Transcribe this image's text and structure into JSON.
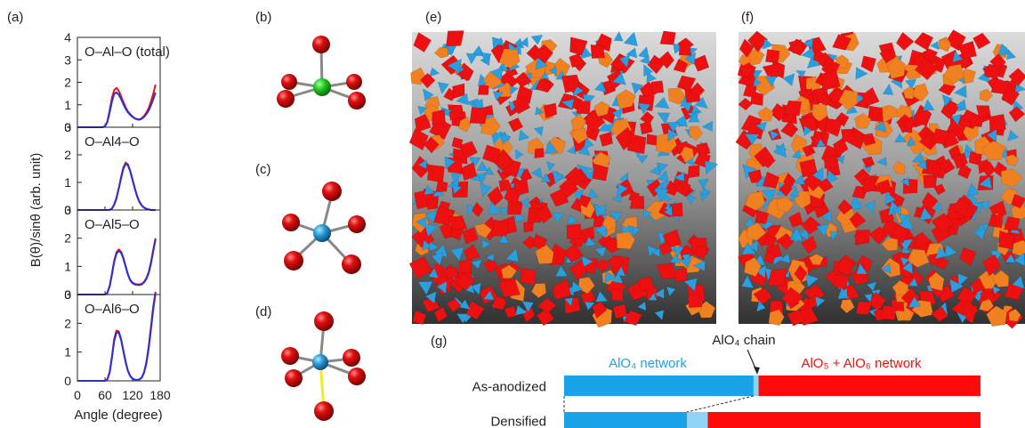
{
  "panel_labels": {
    "a": "(a)",
    "b": "(b)",
    "c": "(c)",
    "d": "(d)",
    "e": "(e)",
    "f": "(f)",
    "g": "(g)"
  },
  "chart_data": {
    "type": "line",
    "xlabel": "Angle (degree)",
    "ylabel": "B(θ)/sinθ (arb. unit)",
    "xlim": [
      0,
      180
    ],
    "x_ticks": [
      0,
      60,
      120,
      180
    ],
    "series_colors": [
      "#ee1111",
      "#2233dd"
    ],
    "panels": [
      {
        "title": "O–Al–O (total)",
        "ylim": [
          0,
          4
        ],
        "y_ticks": [
          0,
          1,
          2,
          3,
          4
        ],
        "series": [
          {
            "x": [
              0,
              55,
              60,
              65,
              70,
              75,
              80,
              85,
              90,
              95,
              100,
              105,
              110,
              115,
              120,
              125,
              130,
              135,
              140,
              145,
              150,
              155,
              160,
              165,
              170
            ],
            "values": [
              0,
              0,
              0.05,
              0.25,
              0.75,
              1.3,
              1.65,
              1.75,
              1.62,
              1.38,
              1.12,
              0.88,
              0.7,
              0.58,
              0.48,
              0.4,
              0.36,
              0.35,
              0.4,
              0.5,
              0.65,
              0.85,
              1.15,
              1.5,
              1.9
            ]
          },
          {
            "x": [
              0,
              55,
              60,
              65,
              70,
              75,
              80,
              85,
              90,
              95,
              100,
              105,
              110,
              115,
              120,
              125,
              130,
              135,
              140,
              145,
              150,
              155,
              160,
              165,
              170
            ],
            "values": [
              0,
              0,
              0.04,
              0.22,
              0.65,
              1.15,
              1.48,
              1.55,
              1.45,
              1.25,
              1.02,
              0.82,
              0.66,
              0.55,
              0.46,
              0.39,
              0.35,
              0.34,
              0.38,
              0.46,
              0.58,
              0.75,
              0.98,
              1.25,
              1.55
            ]
          }
        ]
      },
      {
        "title": "O–Al4–O",
        "ylim": [
          0,
          3
        ],
        "y_ticks": [
          0,
          1,
          2,
          3
        ],
        "series": [
          {
            "x": [
              0,
              70,
              75,
              80,
              85,
              90,
              95,
              100,
              105,
              110,
              115,
              120,
              125,
              130,
              135,
              140,
              145,
              150,
              155,
              160,
              170
            ],
            "values": [
              0,
              0,
              0.05,
              0.2,
              0.45,
              0.8,
              1.2,
              1.55,
              1.72,
              1.65,
              1.42,
              1.1,
              0.78,
              0.5,
              0.3,
              0.17,
              0.09,
              0.05,
              0.02,
              0,
              0
            ]
          },
          {
            "x": [
              0,
              70,
              75,
              80,
              85,
              90,
              95,
              100,
              105,
              110,
              115,
              120,
              125,
              130,
              135,
              140,
              145,
              150,
              155,
              160,
              170
            ],
            "values": [
              0,
              0,
              0.05,
              0.18,
              0.42,
              0.78,
              1.15,
              1.5,
              1.68,
              1.62,
              1.4,
              1.08,
              0.76,
              0.48,
              0.28,
              0.16,
              0.08,
              0.04,
              0.02,
              0,
              0
            ]
          }
        ]
      },
      {
        "title": "O–Al5–O",
        "ylim": [
          0,
          3
        ],
        "y_ticks": [
          0,
          1,
          2,
          3
        ],
        "series": [
          {
            "x": [
              0,
              60,
              65,
              70,
              75,
              80,
              85,
              90,
              95,
              100,
              105,
              110,
              115,
              120,
              125,
              130,
              135,
              140,
              145,
              150,
              155,
              160,
              165,
              170
            ],
            "values": [
              0,
              0,
              0.06,
              0.3,
              0.75,
              1.2,
              1.5,
              1.6,
              1.52,
              1.3,
              1.0,
              0.72,
              0.52,
              0.42,
              0.38,
              0.36,
              0.36,
              0.38,
              0.45,
              0.58,
              0.8,
              1.15,
              1.6,
              2.0
            ]
          },
          {
            "x": [
              0,
              60,
              65,
              70,
              75,
              80,
              85,
              90,
              95,
              100,
              105,
              110,
              115,
              120,
              125,
              130,
              135,
              140,
              145,
              150,
              155,
              160,
              165,
              170
            ],
            "values": [
              0,
              0,
              0.05,
              0.28,
              0.7,
              1.15,
              1.45,
              1.55,
              1.48,
              1.27,
              0.98,
              0.7,
              0.5,
              0.4,
              0.36,
              0.34,
              0.34,
              0.36,
              0.43,
              0.55,
              0.76,
              1.1,
              1.55,
              1.95
            ]
          }
        ]
      },
      {
        "title": "O–Al6–O",
        "ylim": [
          0,
          3
        ],
        "y_ticks": [
          0,
          1,
          2,
          3
        ],
        "series": [
          {
            "x": [
              0,
              60,
              65,
              70,
              75,
              80,
              85,
              90,
              95,
              100,
              105,
              110,
              115,
              120,
              125,
              130,
              135,
              140,
              145,
              150,
              155,
              160,
              165,
              170
            ],
            "values": [
              0,
              0,
              0.05,
              0.3,
              0.85,
              1.45,
              1.75,
              1.72,
              1.45,
              1.05,
              0.65,
              0.35,
              0.17,
              0.08,
              0.04,
              0.03,
              0.05,
              0.12,
              0.3,
              0.65,
              1.2,
              1.9,
              2.6,
              3.1
            ]
          },
          {
            "x": [
              0,
              60,
              65,
              70,
              75,
              80,
              85,
              90,
              95,
              100,
              105,
              110,
              115,
              120,
              125,
              130,
              135,
              140,
              145,
              150,
              155,
              160,
              165,
              170
            ],
            "values": [
              0,
              0,
              0.05,
              0.28,
              0.8,
              1.38,
              1.68,
              1.68,
              1.42,
              1.02,
              0.63,
              0.34,
              0.16,
              0.07,
              0.04,
              0.03,
              0.05,
              0.11,
              0.28,
              0.6,
              1.12,
              1.8,
              2.5,
              3.05
            ]
          }
        ]
      }
    ]
  },
  "bar_chart": {
    "labels": {
      "aloc4_network": "AlO₄ network",
      "aloc4_chain": "AlO₄ chain",
      "alo5_alo6_network": "AlO₅ + AlO₆ network"
    },
    "colors": {
      "network4": "#1aa3e8",
      "chain": "#8fd3f5",
      "network56": "#ff0a0a"
    },
    "rows": [
      {
        "name": "As-anodized",
        "network4": 0.455,
        "chain": 0.012,
        "network56": 0.533
      },
      {
        "name": "Densified",
        "network4": 0.295,
        "chain": 0.05,
        "network56": 0.655
      }
    ]
  },
  "structure_colors": {
    "alo4": "#2a9fe0",
    "alo5": "#f08020",
    "alo6": "#ee1010",
    "oxygen": "#cc0000",
    "al_center_b": "#22cc22",
    "al_center_cd": "#2a9fd8",
    "bond_long": "#eeee22"
  }
}
